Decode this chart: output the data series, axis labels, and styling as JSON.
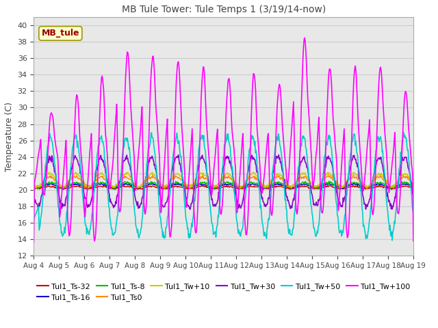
{
  "title": "MB Tule Tower: Tule Temps 1 (3/19/14-now)",
  "ylabel": "Temperature (C)",
  "annotation": "MB_tule",
  "ylim": [
    12,
    41
  ],
  "yticks": [
    12,
    14,
    16,
    18,
    20,
    22,
    24,
    26,
    28,
    30,
    32,
    34,
    36,
    38,
    40
  ],
  "xlim_days": [
    0,
    15
  ],
  "n_days": 15,
  "x_start_day": 4,
  "series": [
    {
      "label": "Tul1_Ts-32",
      "color": "#cc0000"
    },
    {
      "label": "Tul1_Ts-16",
      "color": "#0000cc"
    },
    {
      "label": "Tul1_Ts-8",
      "color": "#00bb00"
    },
    {
      "label": "Tul1_Ts0",
      "color": "#ff8800"
    },
    {
      "label": "Tul1_Tw+10",
      "color": "#cccc00"
    },
    {
      "label": "Tul1_Tw+30",
      "color": "#8800cc"
    },
    {
      "label": "Tul1_Tw+50",
      "color": "#00cccc"
    },
    {
      "label": "Tul1_Tw+100",
      "color": "#ff00ff"
    }
  ],
  "legend_ncol": 6,
  "grid_color": "#cccccc",
  "bg_color": "#ffffff",
  "annotation_color": "#990000",
  "annotation_bg": "#ffffcc",
  "annotation_edge": "#999900"
}
